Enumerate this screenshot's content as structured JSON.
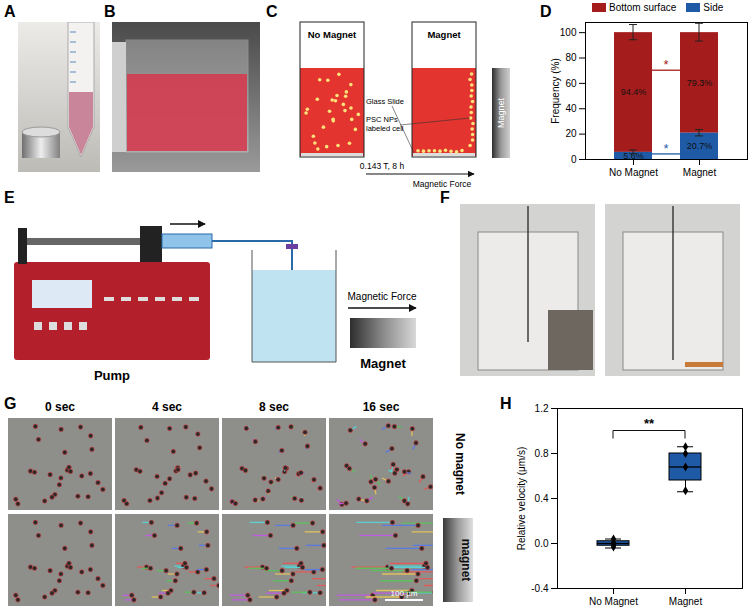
{
  "panels": {
    "A": {
      "label": "A"
    },
    "B": {
      "label": "B"
    },
    "C": {
      "label": "C",
      "left_title": "No Magnet",
      "right_title": "Magnet",
      "glass_slide": "Glass Slide",
      "cells": "PSC NPs labeled cell",
      "condition": "0.143 T, 8 h",
      "force": "Magnetic Force",
      "magnet": "Magnet"
    },
    "D": {
      "label": "D"
    },
    "E": {
      "label": "E",
      "pump": "Pump",
      "magnet": "Magnet",
      "force": "Magnetic Force"
    },
    "F": {
      "label": "F"
    },
    "G": {
      "label": "G",
      "times": [
        "0 sec",
        "4 sec",
        "8 sec",
        "16 sec"
      ],
      "rows": [
        "No magnet",
        "magnet"
      ],
      "scale_bar": "100 μm"
    },
    "H": {
      "label": "H"
    }
  },
  "chart_data": [
    {
      "type": "bar",
      "stacked": true,
      "legend": "top",
      "data_labels": true,
      "categories": [
        "No Magnet",
        "Magnet"
      ],
      "series": [
        {
          "name": "Bottom surface",
          "color": "#a51c1c",
          "values": [
            94.4,
            79.3
          ],
          "value_labels": [
            "94.4%",
            "79.3%"
          ],
          "errors": [
            6,
            7
          ]
        },
        {
          "name": "Side",
          "color": "#1f5aa6",
          "values": [
            5.6,
            20.7
          ],
          "value_labels": [
            "5.6%",
            "20.7%"
          ],
          "errors": [
            1.5,
            2.5
          ]
        }
      ],
      "ylabel": "Frequency (%)",
      "ylim": [
        0,
        108
      ],
      "yticks": [
        0,
        20,
        40,
        60,
        80,
        100
      ],
      "annotations": [
        {
          "text": "*",
          "color": "#a51c1c",
          "from": "No Magnet",
          "to": "Magnet",
          "y": 70
        },
        {
          "text": "*",
          "color": "#1f5aa6",
          "from": "No Magnet",
          "to": "Magnet",
          "y": 4
        }
      ]
    },
    {
      "type": "box",
      "categories": [
        "No Magnet",
        "Magnet"
      ],
      "boxes": [
        {
          "min": -0.04,
          "q1": -0.02,
          "median": 0.0,
          "q3": 0.02,
          "max": 0.04,
          "points": [
            -0.03,
            -0.01,
            0.01,
            0.04
          ]
        },
        {
          "min": 0.46,
          "q1": 0.56,
          "median": 0.68,
          "q3": 0.8,
          "max": 0.86,
          "points": [
            0.47,
            0.68,
            0.8,
            0.86
          ]
        }
      ],
      "color": "#1f5aa6",
      "marker": "diamond",
      "ylabel": "Relative velocity (μm/s)",
      "ylim": [
        -0.4,
        1.2
      ],
      "yticks": [
        -0.4,
        {
          "value": 0,
          "label": "0.0"
        },
        0.4,
        0.8,
        1.2
      ],
      "annotations": [
        {
          "text": "**",
          "from": "No Magnet",
          "to": "Magnet",
          "y": 1.0
        }
      ]
    }
  ]
}
